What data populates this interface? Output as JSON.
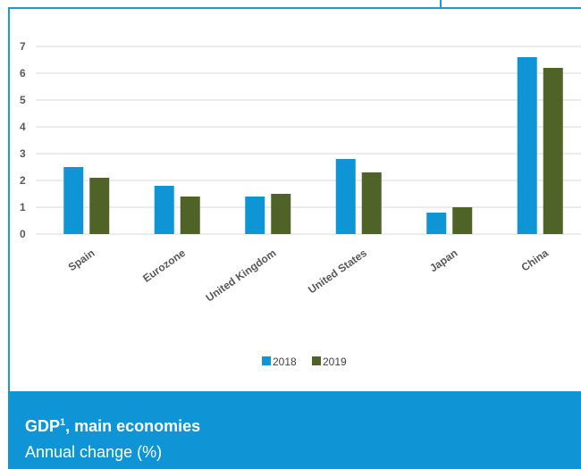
{
  "chart_data": {
    "type": "bar",
    "categories": [
      "Spain",
      "Eurozone",
      "United Kingdom",
      "United States",
      "Japan",
      "China"
    ],
    "series": [
      {
        "name": "2018",
        "values": [
          2.5,
          1.8,
          1.4,
          2.8,
          0.8,
          6.6
        ],
        "color": "#0f95d6"
      },
      {
        "name": "2019",
        "values": [
          2.1,
          1.4,
          1.5,
          2.3,
          1.0,
          6.2
        ],
        "color": "#4f6228"
      }
    ],
    "yticks": [
      "0",
      "1",
      "2",
      "3",
      "4",
      "5",
      "6",
      "7"
    ],
    "ylim": [
      0,
      7
    ],
    "grid": true,
    "legend_position": "bottom"
  },
  "footer": {
    "title": "GDP",
    "title_sup": "1",
    "title_rest": ", main economies",
    "subtitle": "Annual change (%)"
  }
}
